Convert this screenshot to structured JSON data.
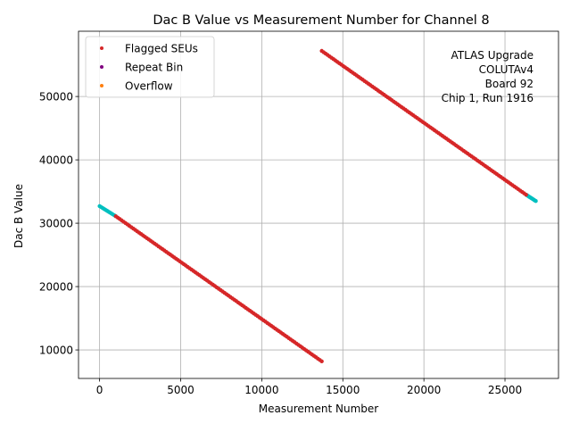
{
  "chart_data": {
    "type": "scatter",
    "title": "Dac B Value vs Measurement Number for Channel 8",
    "xlabel": "Measurement Number",
    "ylabel": "Dac B Value",
    "xlim": [
      -1300,
      28300
    ],
    "ylim": [
      5500,
      60300
    ],
    "xticks": [
      0,
      5000,
      10000,
      15000,
      20000,
      25000
    ],
    "yticks": [
      10000,
      20000,
      30000,
      40000,
      50000
    ],
    "grid": true,
    "legend_position": "top-left",
    "legend": [
      {
        "label": "Flagged SEUs",
        "color": "#d62728"
      },
      {
        "label": "Repeat Bin",
        "color": "#800080"
      },
      {
        "label": "Overflow",
        "color": "#ff7f0e"
      }
    ],
    "annotation_lines": [
      "ATLAS Upgrade",
      "COLUTAv4",
      "Board 92",
      "Chip 1, Run 1916"
    ],
    "series": [
      {
        "color": "#00bfbf",
        "segments": [
          {
            "x": [
              0,
              1000
            ],
            "y": [
              32700,
              31100
            ]
          },
          {
            "x": [
              26300,
              26900
            ],
            "y": [
              34500,
              33500
            ]
          }
        ]
      },
      {
        "name": "Flagged SEUs",
        "color": "#d62728",
        "segments": [
          {
            "x": [
              1000,
              13700
            ],
            "y": [
              31100,
              8200
            ]
          },
          {
            "x": [
              13700,
              26300
            ],
            "y": [
              57200,
              34500
            ]
          }
        ]
      }
    ]
  }
}
